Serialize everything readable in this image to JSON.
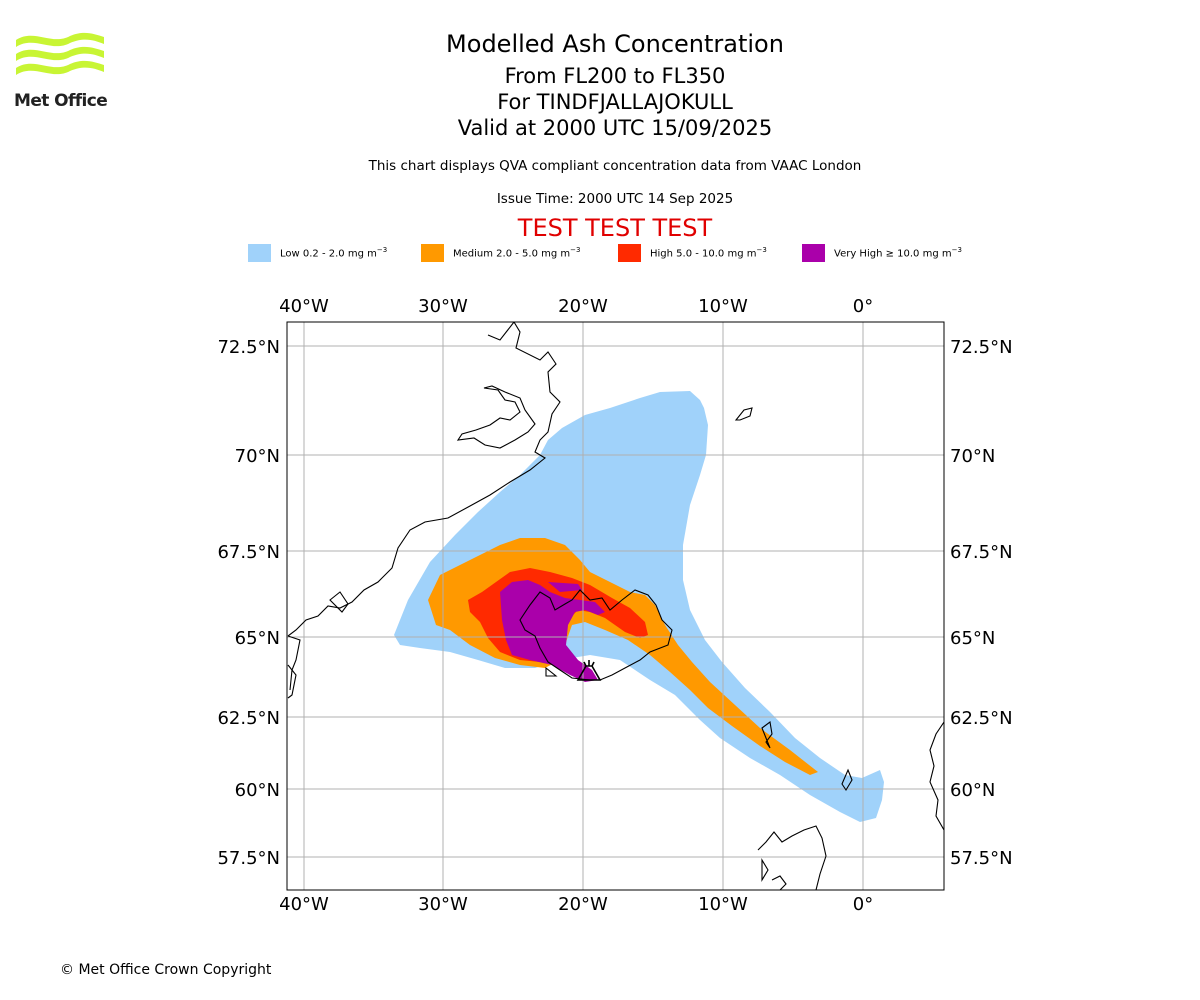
{
  "logo": {
    "text": "Met Office",
    "color": "#c8f534"
  },
  "title": {
    "main": "Modelled Ash Concentration",
    "line1": "From FL200 to FL350",
    "line2": "For TINDFJALLAJOKULL",
    "line3": "Valid at 2000 UTC 15/09/2025"
  },
  "note": "This chart displays QVA compliant concentration data from VAAC London",
  "issue_time": "Issue Time: 2000 UTC 14 Sep 2025",
  "test_banner": "TEST TEST TEST",
  "legend": [
    {
      "label": "Low 0.2 - 2.0 mg m",
      "unit_exp": "−3",
      "color": "#a0d2fa"
    },
    {
      "label": "Medium 2.0 - 5.0 mg m",
      "unit_exp": "−3",
      "color": "#ff9900"
    },
    {
      "label": "High 5.0 - 10.0 mg m",
      "unit_exp": "−3",
      "color": "#ff2a00"
    },
    {
      "label": "Very High ≥ 10.0 mg m",
      "unit_exp": "−3",
      "color": "#aa00aa"
    }
  ],
  "map": {
    "lon_labels": [
      "40°W",
      "30°W",
      "20°W",
      "10°W",
      "0°"
    ],
    "lat_labels": [
      "72.5°N",
      "70°N",
      "67.5°N",
      "65°N",
      "62.5°N",
      "60°N",
      "57.5°N"
    ],
    "gridline_color": "#b0b0b0",
    "coastline_color": "#000000"
  },
  "copyright": "© Met Office Crown Copyright"
}
